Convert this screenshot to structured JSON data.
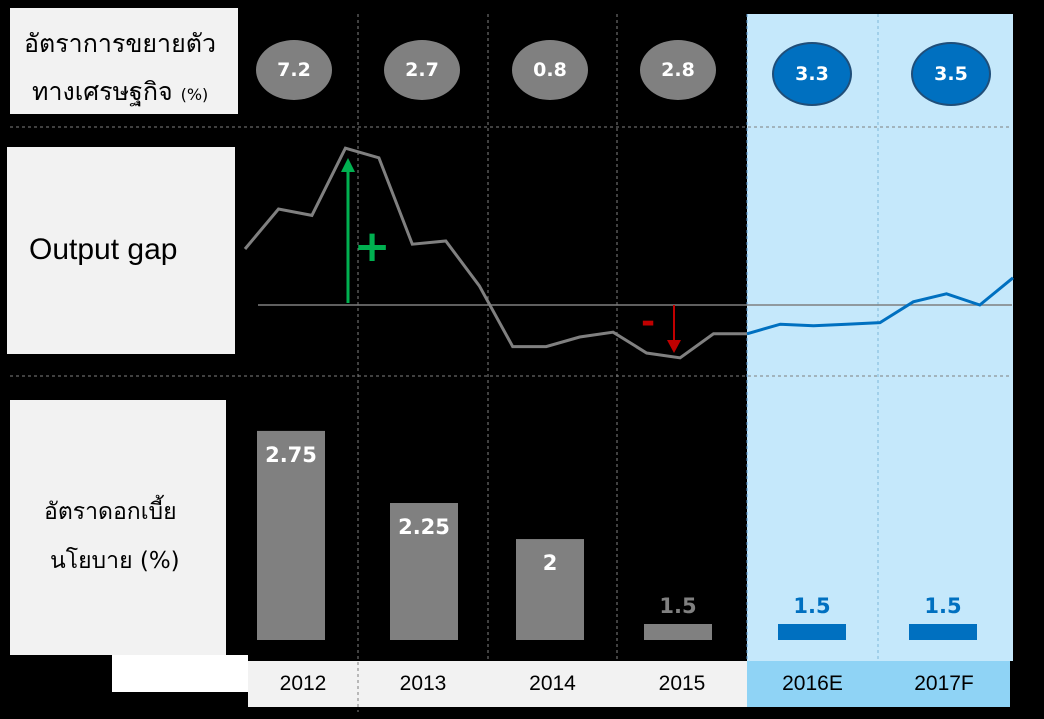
{
  "labels": {
    "gdp_line1": "อัตราการขยายตัว",
    "gdp_line2": "ทางเศรษฐกิจ",
    "gdp_unit": "(%)",
    "output_gap": "Output gap",
    "rate_line1": "อัตราดอกเบี้ย",
    "rate_line2": "นโยบาย (%)"
  },
  "colors": {
    "actual": "#808080",
    "forecast": "#0070c0",
    "forecast_bg": "#c5e8fb",
    "plus": "#00b050",
    "minus": "#c00000"
  },
  "chart_data": [
    {
      "type": "table",
      "name": "gdp_growth",
      "categories": [
        "2012",
        "2013",
        "2014",
        "2015",
        "2016E",
        "2017F"
      ],
      "values": [
        "7.2",
        "2.7",
        "0.8",
        "2.8",
        "3.3",
        "3.5"
      ]
    },
    {
      "type": "line",
      "name": "output_gap",
      "annotations": [
        "+",
        "-"
      ],
      "series": [
        {
          "values": [
            0.35,
            0.6,
            0.56,
            0.98,
            0.92,
            0.38,
            0.4,
            0.12,
            -0.26,
            -0.26,
            -0.2,
            -0.17,
            -0.3,
            -0.33,
            -0.18,
            -0.18
          ]
        },
        {
          "values": [
            -0.18,
            -0.12,
            -0.13,
            -0.12,
            -0.11,
            0.02,
            0.07,
            0.0,
            0.17
          ]
        }
      ]
    },
    {
      "type": "bar",
      "name": "policy_rate",
      "categories": [
        "2012",
        "2013",
        "2014",
        "2015",
        "2016E",
        "2017F"
      ],
      "values": [
        2.75,
        2.25,
        2.0,
        1.5,
        1.5,
        1.5
      ],
      "value_labels": [
        "2.75",
        "2.25",
        "2",
        "1.5",
        "1.5",
        "1.5"
      ],
      "forecast_from_index": 4
    }
  ]
}
